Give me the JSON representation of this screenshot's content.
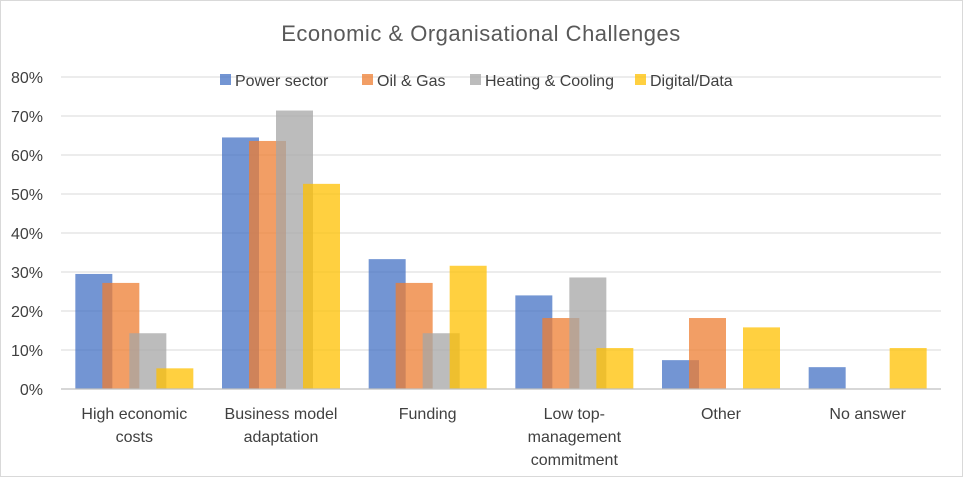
{
  "chart_data": {
    "type": "bar",
    "title": "Economic & Organisational Challenges",
    "categories": [
      [
        "High economic",
        "costs"
      ],
      [
        "Business model",
        "adaptation"
      ],
      [
        "Funding"
      ],
      [
        "Low top-",
        "management",
        "commitment"
      ],
      [
        "Other"
      ],
      [
        "No answer"
      ]
    ],
    "series": [
      {
        "name": "Power sector",
        "color": "#4472C4",
        "values": [
          29.5,
          64.5,
          33.3,
          24.0,
          7.4,
          5.6
        ]
      },
      {
        "name": "Oil & Gas",
        "color": "#ED7D31",
        "values": [
          27.2,
          63.6,
          27.2,
          18.2,
          18.2,
          0
        ]
      },
      {
        "name": "Heating & Cooling",
        "color": "#A5A5A5",
        "values": [
          14.3,
          71.4,
          14.3,
          28.6,
          0,
          0
        ]
      },
      {
        "name": "Digital/Data",
        "color": "#FFC000",
        "values": [
          5.3,
          52.6,
          31.6,
          10.5,
          15.8,
          10.5
        ]
      }
    ],
    "yticks": [
      "0%",
      "10%",
      "20%",
      "30%",
      "40%",
      "50%",
      "60%",
      "70%",
      "80%"
    ],
    "ylim": [
      0,
      80
    ],
    "grid": true,
    "legend": "top-center"
  }
}
